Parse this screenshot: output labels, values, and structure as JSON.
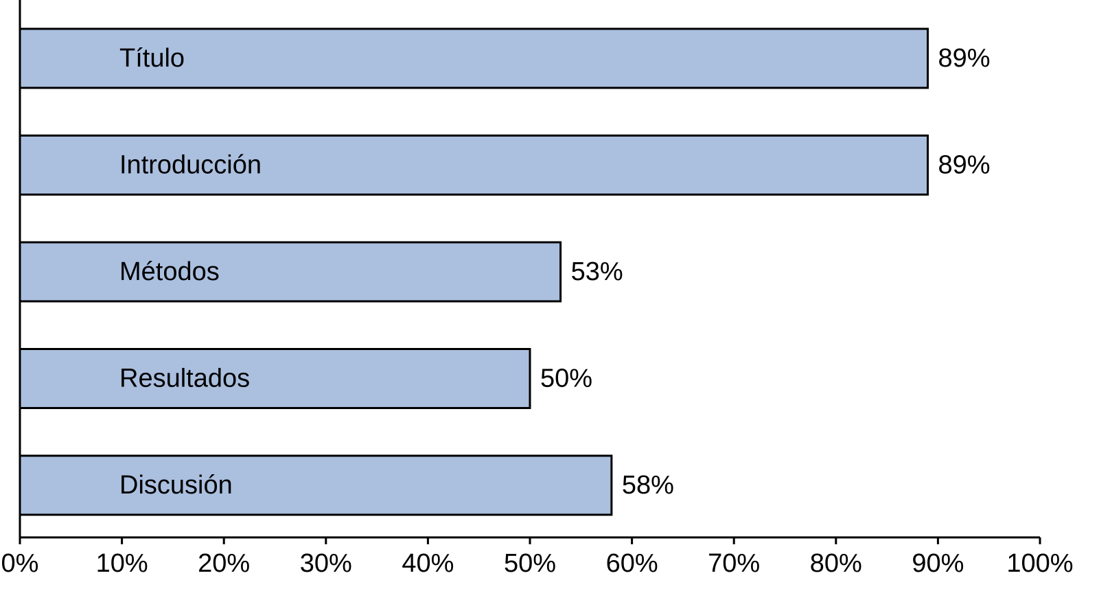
{
  "chart_data": {
    "type": "hbar",
    "categories": [
      "Título",
      "Introducción",
      "Métodos",
      "Resultados",
      "Discusión"
    ],
    "values": [
      89,
      89,
      53,
      50,
      58
    ],
    "value_labels": [
      "89%",
      "89%",
      "53%",
      "50%",
      "58%"
    ],
    "color": "#abbfdf",
    "xlim": [
      0,
      100
    ],
    "xticks": [
      {
        "value": 0,
        "label": "0%"
      },
      {
        "value": 10,
        "label": "10%"
      },
      {
        "value": 20,
        "label": "20%"
      },
      {
        "value": 30,
        "label": "30%"
      },
      {
        "value": 40,
        "label": "40%"
      },
      {
        "value": 50,
        "label": "50%"
      },
      {
        "value": 60,
        "label": "60%"
      },
      {
        "value": 70,
        "label": "70%"
      },
      {
        "value": 80,
        "label": "80%"
      },
      {
        "value": 90,
        "label": "90%"
      },
      {
        "value": 100,
        "label": "100%"
      }
    ],
    "grid": false
  }
}
